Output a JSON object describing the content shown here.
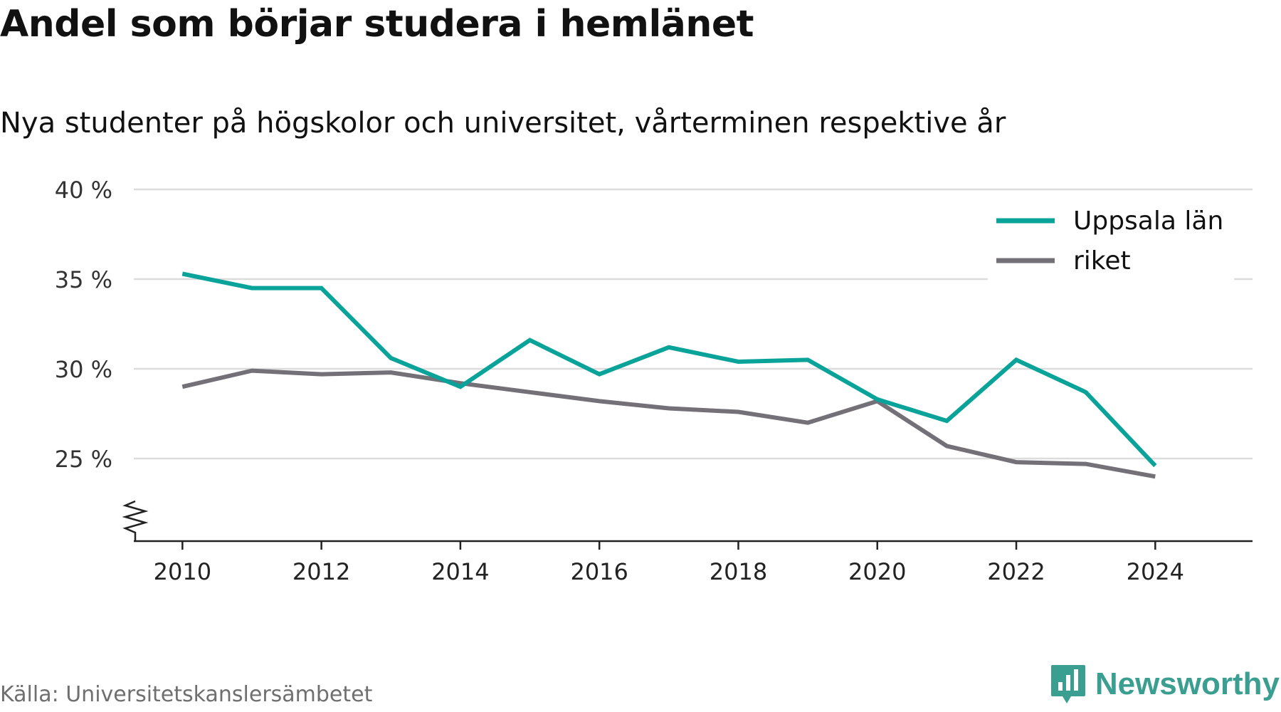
{
  "header": {
    "title": "Andel som börjar studera i hemlänet",
    "subtitle": "Nya studenter på högskolor och universitet, vårterminen respektive år"
  },
  "footer": {
    "source": "Källa: Universitetskanslersämbetet",
    "brand": "Newsworthy",
    "brand_color": "#3a9e90",
    "brand_icon": "bar-chart-speech-bubble-icon"
  },
  "chart_data": {
    "type": "line",
    "x": [
      2010,
      2011,
      2012,
      2013,
      2014,
      2015,
      2016,
      2017,
      2018,
      2019,
      2020,
      2021,
      2022,
      2023,
      2024
    ],
    "series": [
      {
        "name": "Uppsala län",
        "color": "#0aa39a",
        "values": [
          35.3,
          34.5,
          34.5,
          30.6,
          29.0,
          31.6,
          29.7,
          31.2,
          30.4,
          30.5,
          28.3,
          27.1,
          30.5,
          28.7,
          24.6
        ]
      },
      {
        "name": "riket",
        "color": "#737078",
        "values": [
          29.0,
          29.9,
          29.7,
          29.8,
          29.2,
          28.7,
          28.2,
          27.8,
          27.6,
          27.0,
          28.2,
          25.7,
          24.8,
          24.7,
          24.0
        ]
      }
    ],
    "x_ticks": [
      2010,
      2012,
      2014,
      2016,
      2018,
      2020,
      2022,
      2024
    ],
    "x_tick_labels": [
      "2010",
      "2012",
      "2014",
      "2016",
      "2018",
      "2020",
      "2022",
      "2024"
    ],
    "y_ticks": [
      25,
      30,
      35,
      40
    ],
    "y_tick_labels": [
      "25 %",
      "30 %",
      "35 %",
      "40 %"
    ],
    "xlim": [
      2009.3,
      2025.4
    ],
    "ylim": [
      20.4,
      40
    ],
    "y_axis_break": true,
    "grid": "horizontal",
    "legend_position": "top-right",
    "xlabel": "",
    "ylabel": ""
  }
}
